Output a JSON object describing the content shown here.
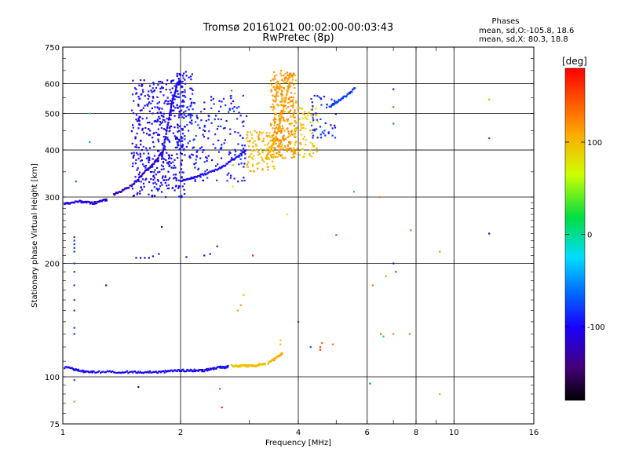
{
  "chart_data": {
    "type": "scatter",
    "title": "Tromsø 20161021 00:02:00-00:03:43",
    "subtitle": "RwPretec (8p)",
    "xlabel": "Frequency [MHz]",
    "ylabel": "Stationary phase Virtual Height [km]",
    "x_scale": "log",
    "y_scale": "log",
    "xlim": [
      1,
      16
    ],
    "ylim": [
      75,
      750
    ],
    "x_ticks": [
      1,
      2,
      4,
      6,
      8,
      10,
      16
    ],
    "y_ticks": [
      75,
      100,
      200,
      300,
      400,
      500,
      600,
      750
    ],
    "grid": true,
    "legend": {
      "title": "Phases",
      "lines": [
        "mean, sd,O:-105.8, 18.6",
        "mean, sd,X:  80.3, 18.8"
      ],
      "placement": "top-right"
    },
    "colorbar": {
      "label": "[deg]",
      "range": [
        -180,
        180
      ],
      "ticks": [
        100,
        0,
        -100
      ],
      "palette": "rainbow"
    },
    "traces": [
      {
        "x": [
          1.01,
          1.06,
          1.1,
          1.15,
          1.2,
          1.3,
          1.4,
          1.5,
          1.6,
          1.7,
          1.8,
          1.9,
          2.0,
          2.1,
          2.2,
          2.3,
          2.4,
          2.5,
          2.6,
          2.65
        ],
        "y": [
          106,
          105,
          104,
          103,
          103,
          103,
          103,
          103,
          103,
          103,
          103,
          104,
          104,
          104,
          104,
          104,
          105,
          106,
          106,
          107
        ],
        "phase": -100
      },
      {
        "x": [
          2.7,
          2.8,
          2.9,
          3.0,
          3.1,
          3.2,
          3.3
        ],
        "y": [
          107,
          107,
          107,
          107,
          107,
          108,
          108
        ],
        "phase": 95
      },
      {
        "x": [
          3.35,
          3.45,
          3.55,
          3.65
        ],
        "y": [
          109,
          111,
          113,
          116
        ],
        "phase": 105
      },
      {
        "x": [
          1.01,
          1.05,
          1.1,
          1.15,
          1.2,
          1.25,
          1.3
        ],
        "y": [
          289,
          290,
          292,
          291,
          289,
          293,
          295
        ],
        "phase": -110
      },
      {
        "x": [
          1.35,
          1.42,
          1.5,
          1.56,
          1.62,
          1.68,
          1.74,
          1.79
        ],
        "y": [
          305,
          312,
          322,
          335,
          350,
          362,
          378,
          395
        ],
        "phase": -120
      },
      {
        "x": [
          1.79,
          1.82,
          1.85,
          1.88,
          1.9,
          1.93,
          1.96,
          2.0
        ],
        "y": [
          380,
          420,
          460,
          500,
          540,
          560,
          600,
          610
        ],
        "phase": -105
      },
      {
        "x": [
          2.0,
          2.1,
          2.2,
          2.35,
          2.5,
          2.65,
          2.8,
          2.95
        ],
        "y": [
          330,
          335,
          340,
          348,
          356,
          370,
          385,
          400
        ],
        "phase": -105
      },
      {
        "x": [
          3.3,
          3.4,
          3.5,
          3.6,
          3.7,
          3.8
        ],
        "y": [
          380,
          400,
          430,
          480,
          540,
          600
        ],
        "phase": 110
      },
      {
        "x": [
          4.8,
          5.0,
          5.2,
          5.4,
          5.6
        ],
        "y": [
          520,
          535,
          550,
          565,
          585
        ],
        "phase": -80
      }
    ],
    "clusters": [
      {
        "x": [
          1.5,
          2.05
        ],
        "y": [
          300,
          620
        ],
        "n": 450,
        "phase": -100
      },
      {
        "x": [
          1.95,
          2.15
        ],
        "y": [
          380,
          650
        ],
        "n": 100,
        "phase": -95
      },
      {
        "x": [
          2.15,
          2.95
        ],
        "y": [
          330,
          560
        ],
        "n": 160,
        "phase": -90
      },
      {
        "x": [
          2.95,
          3.5
        ],
        "y": [
          350,
          450
        ],
        "n": 110,
        "phase": 100
      },
      {
        "x": [
          3.4,
          3.95
        ],
        "y": [
          380,
          650
        ],
        "n": 330,
        "phase": 115
      },
      {
        "x": [
          3.9,
          4.5
        ],
        "y": [
          380,
          520
        ],
        "n": 80,
        "phase": 95
      },
      {
        "x": [
          4.3,
          5.0
        ],
        "y": [
          430,
          560
        ],
        "n": 50,
        "phase": -85
      }
    ],
    "points": [
      {
        "x": 1.07,
        "y": 235,
        "phase": -80
      },
      {
        "x": 1.07,
        "y": 230,
        "phase": -80
      },
      {
        "x": 1.07,
        "y": 225,
        "phase": -80
      },
      {
        "x": 1.07,
        "y": 220,
        "phase": -80
      },
      {
        "x": 1.07,
        "y": 215,
        "phase": -80
      },
      {
        "x": 1.07,
        "y": 200,
        "phase": -80
      },
      {
        "x": 1.07,
        "y": 190,
        "phase": -80
      },
      {
        "x": 1.07,
        "y": 175,
        "phase": -80
      },
      {
        "x": 1.07,
        "y": 160,
        "phase": -80
      },
      {
        "x": 1.07,
        "y": 150,
        "phase": -80
      },
      {
        "x": 1.07,
        "y": 135,
        "phase": -80
      },
      {
        "x": 1.07,
        "y": 130,
        "phase": -80
      },
      {
        "x": 1.07,
        "y": 98,
        "phase": -80
      },
      {
        "x": 1.07,
        "y": 86,
        "phase": 120
      },
      {
        "x": 1.08,
        "y": 330,
        "phase": -60
      },
      {
        "x": 1.17,
        "y": 500,
        "phase": -10
      },
      {
        "x": 1.17,
        "y": 420,
        "phase": -40
      },
      {
        "x": 1.29,
        "y": 175,
        "phase": -130
      },
      {
        "x": 1.54,
        "y": 207,
        "phase": -120
      },
      {
        "x": 1.58,
        "y": 207,
        "phase": -120
      },
      {
        "x": 1.62,
        "y": 207,
        "phase": -120
      },
      {
        "x": 1.66,
        "y": 207,
        "phase": -120
      },
      {
        "x": 1.7,
        "y": 209,
        "phase": -110
      },
      {
        "x": 1.76,
        "y": 212,
        "phase": -110
      },
      {
        "x": 1.79,
        "y": 250,
        "phase": -110
      },
      {
        "x": 1.56,
        "y": 94,
        "phase": -150
      },
      {
        "x": 2.07,
        "y": 208,
        "phase": -110
      },
      {
        "x": 2.3,
        "y": 210,
        "phase": -110
      },
      {
        "x": 2.38,
        "y": 212,
        "phase": -110
      },
      {
        "x": 2.48,
        "y": 222,
        "phase": -90
      },
      {
        "x": 2.52,
        "y": 93,
        "phase": 150
      },
      {
        "x": 2.55,
        "y": 83,
        "phase": 160
      },
      {
        "x": 2.7,
        "y": 575,
        "phase": 150
      },
      {
        "x": 2.72,
        "y": 365,
        "phase": 40
      },
      {
        "x": 2.72,
        "y": 320,
        "phase": 60
      },
      {
        "x": 2.85,
        "y": 155,
        "phase": 120
      },
      {
        "x": 2.9,
        "y": 165,
        "phase": 100
      },
      {
        "x": 2.8,
        "y": 150,
        "phase": 110
      },
      {
        "x": 3.06,
        "y": 210,
        "phase": 160
      },
      {
        "x": 3.6,
        "y": 122,
        "phase": 100
      },
      {
        "x": 3.6,
        "y": 125,
        "phase": 90
      },
      {
        "x": 3.75,
        "y": 270,
        "phase": 70
      },
      {
        "x": 4.0,
        "y": 140,
        "phase": -80
      },
      {
        "x": 4.3,
        "y": 120,
        "phase": -70
      },
      {
        "x": 4.55,
        "y": 120,
        "phase": 150
      },
      {
        "x": 4.55,
        "y": 118,
        "phase": 160
      },
      {
        "x": 4.6,
        "y": 123,
        "phase": 140
      },
      {
        "x": 4.9,
        "y": 122,
        "phase": 130
      },
      {
        "x": 5.0,
        "y": 238,
        "phase": 160
      },
      {
        "x": 5.55,
        "y": 310,
        "phase": 20
      },
      {
        "x": 6.1,
        "y": 96,
        "phase": -60
      },
      {
        "x": 6.2,
        "y": 175,
        "phase": 130
      },
      {
        "x": 6.45,
        "y": 300,
        "phase": 130
      },
      {
        "x": 6.5,
        "y": 130,
        "phase": 140
      },
      {
        "x": 6.6,
        "y": 128,
        "phase": 0
      },
      {
        "x": 6.7,
        "y": 185,
        "phase": 110
      },
      {
        "x": 7.0,
        "y": 200,
        "phase": -110
      },
      {
        "x": 7.1,
        "y": 190,
        "phase": 170
      },
      {
        "x": 7.0,
        "y": 580,
        "phase": -100
      },
      {
        "x": 7.0,
        "y": 520,
        "phase": 150
      },
      {
        "x": 7.0,
        "y": 470,
        "phase": -60
      },
      {
        "x": 7.0,
        "y": 130,
        "phase": 130
      },
      {
        "x": 7.75,
        "y": 245,
        "phase": 130
      },
      {
        "x": 7.7,
        "y": 130,
        "phase": 130
      },
      {
        "x": 9.2,
        "y": 215,
        "phase": 120
      },
      {
        "x": 9.2,
        "y": 90,
        "phase": 110
      },
      {
        "x": 12.3,
        "y": 545,
        "phase": 110
      },
      {
        "x": 12.3,
        "y": 430,
        "phase": -70
      },
      {
        "x": 12.3,
        "y": 240,
        "phase": -110
      }
    ]
  }
}
